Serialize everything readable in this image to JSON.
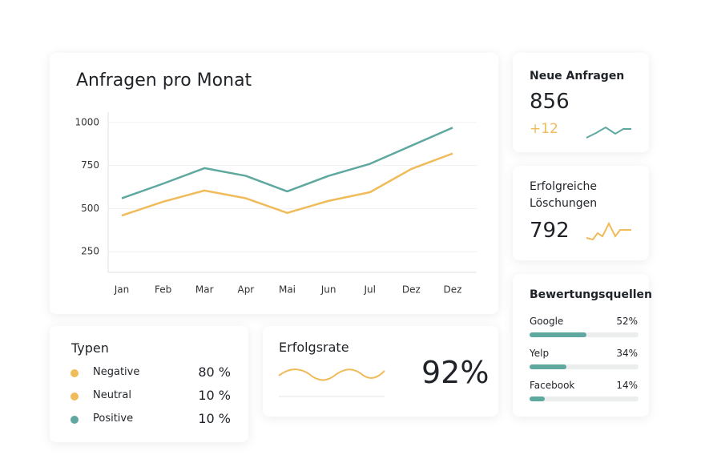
{
  "chart_data": {
    "type": "line",
    "title": "Anfragen pro Monat",
    "categories": [
      "Jan",
      "Feb",
      "Mar",
      "Apr",
      "Mai",
      "Jun",
      "Jul",
      "Dez",
      "Dez"
    ],
    "series": [
      {
        "color": "#5fa8a0",
        "values": [
          560,
          645,
          735,
          690,
          600,
          690,
          760,
          865,
          970
        ]
      },
      {
        "color": "#f0bb5a",
        "values": [
          460,
          540,
          605,
          560,
          475,
          545,
          595,
          730,
          820
        ]
      }
    ],
    "ylim": [
      130,
      1060
    ],
    "yticks": [
      250,
      500,
      750,
      1000
    ],
    "grid": true
  },
  "cards": {
    "new_requests": {
      "title": "Neue Anfragen",
      "value": "856",
      "delta": "+12"
    },
    "deletions": {
      "title": "Erfolgreiche Löschungen",
      "value": "792"
    },
    "sources": {
      "title": "Bewertungsquellen",
      "color": "#5fa8a0",
      "items": [
        {
          "name": "Google",
          "value": 52,
          "value_label": "52%"
        },
        {
          "name": "Yelp",
          "value": 34,
          "value_label": "34%"
        },
        {
          "name": "Facebook",
          "value": 14,
          "value_label": "14%"
        }
      ]
    },
    "types": {
      "title": "Typen",
      "items": [
        {
          "name": "Negative",
          "value": "80 %",
          "color": "#f0bb5a"
        },
        {
          "name": "Neutral",
          "value": "10 %",
          "color": "#f0bb5a"
        },
        {
          "name": "Positive",
          "value": "10 %",
          "color": "#5fa8a0"
        }
      ]
    },
    "success": {
      "title": "Erfolgsrate",
      "value": "92%"
    }
  }
}
